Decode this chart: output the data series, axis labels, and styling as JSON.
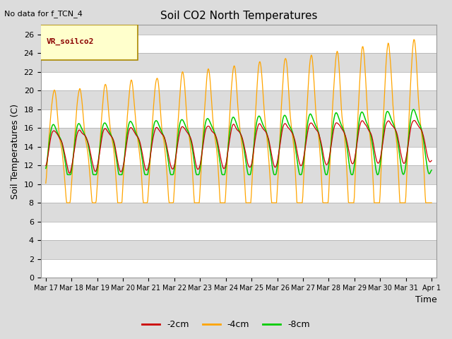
{
  "title": "Soil CO2 North Temperatures",
  "note": "No data for f_TCN_4",
  "ylabel": "Soil Temperatures (C)",
  "xlabel": "Time",
  "legend_box_label": "VR_soilco2",
  "ylim": [
    0,
    27
  ],
  "yticks": [
    0,
    2,
    4,
    6,
    8,
    10,
    12,
    14,
    16,
    18,
    20,
    22,
    24,
    26
  ],
  "xtick_labels": [
    "Mar 17",
    "Mar 18",
    "Mar 19",
    "Mar 20",
    "Mar 21",
    "Mar 22",
    "Mar 23",
    "Mar 24",
    "Mar 25",
    "Mar 26",
    "Mar 27",
    "Mar 28",
    "Mar 29",
    "Mar 30",
    "Mar 31",
    "Apr 1"
  ],
  "bg_color": "#DCDCDC",
  "white_band_color": "#FFFFFF",
  "gray_band_color": "#DCDCDC",
  "legend_entries": [
    "-2cm",
    "-4cm",
    "-8cm"
  ],
  "line_colors": [
    "#CC0000",
    "#FFA500",
    "#00CC00"
  ],
  "days": 15,
  "n_points": 720
}
